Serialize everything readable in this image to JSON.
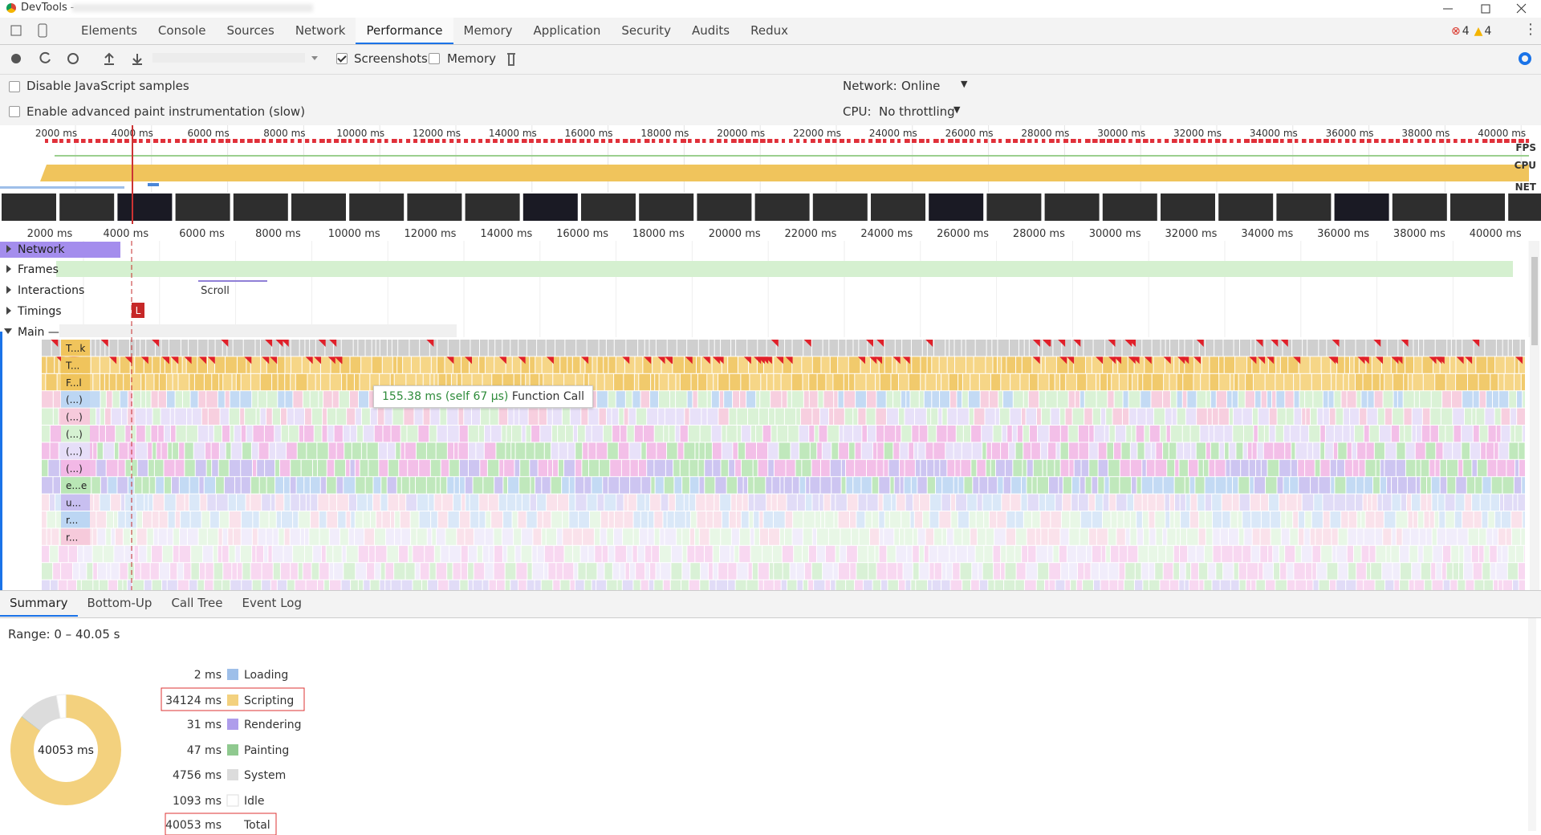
{
  "window": {
    "title": "DevTools -"
  },
  "tabs": [
    "Elements",
    "Console",
    "Sources",
    "Network",
    "Performance",
    "Memory",
    "Application",
    "Security",
    "Audits",
    "Redux"
  ],
  "active_tab": 4,
  "counts": {
    "errors": 4,
    "warnings": 4
  },
  "toolbar": {
    "screenshots": "Screenshots",
    "memory": "Memory"
  },
  "settings": {
    "disable_js": "Disable JavaScript samples",
    "paint": "Enable advanced paint instrumentation (slow)",
    "network_label": "Network:",
    "network_value": "Online",
    "cpu_label": "CPU:",
    "cpu_value": "No throttling"
  },
  "overview": {
    "labels": [
      "FPS",
      "CPU",
      "NET"
    ]
  },
  "ruler": [
    "2000 ms",
    "4000 ms",
    "6000 ms",
    "8000 ms",
    "10000 ms",
    "12000 ms",
    "14000 ms",
    "16000 ms",
    "18000 ms",
    "20000 ms",
    "22000 ms",
    "24000 ms",
    "26000 ms",
    "28000 ms",
    "30000 ms",
    "32000 ms",
    "34000 ms",
    "36000 ms",
    "38000 ms",
    "40000 ms"
  ],
  "tracks": [
    "Network",
    "Frames",
    "Interactions",
    "Timings",
    "Main —"
  ],
  "interaction": "Scroll",
  "timing_marker": "L",
  "flame_labels": [
    "T...k",
    "T...",
    "F...l",
    "(...)",
    "(...)",
    "(...)",
    "(...)",
    "(...)",
    "e...e",
    "u...",
    "r...",
    "r..."
  ],
  "tooltip": {
    "time": "155.38 ms (self 67 μs)",
    "name": "Function Call"
  },
  "summary": {
    "tabs": [
      "Summary",
      "Bottom-Up",
      "Call Tree",
      "Event Log"
    ],
    "range": "Range: 0 – 40.05 s",
    "items": [
      {
        "time": "2 ms",
        "name": "Loading",
        "value": 2,
        "color": "#9ebfe9"
      },
      {
        "time": "34124 ms",
        "name": "Scripting",
        "value": 34124,
        "color": "#f3d17e"
      },
      {
        "time": "31 ms",
        "name": "Rendering",
        "value": 31,
        "color": "#ae9deb"
      },
      {
        "time": "47 ms",
        "name": "Painting",
        "value": 47,
        "color": "#8fc98f"
      },
      {
        "time": "4756 ms",
        "name": "System",
        "value": 4756,
        "color": "#dcdcdc"
      },
      {
        "time": "1093 ms",
        "name": "Idle",
        "value": 1093,
        "color": "#ffffff"
      }
    ],
    "total": {
      "time": "40053 ms",
      "name": "Total"
    }
  }
}
